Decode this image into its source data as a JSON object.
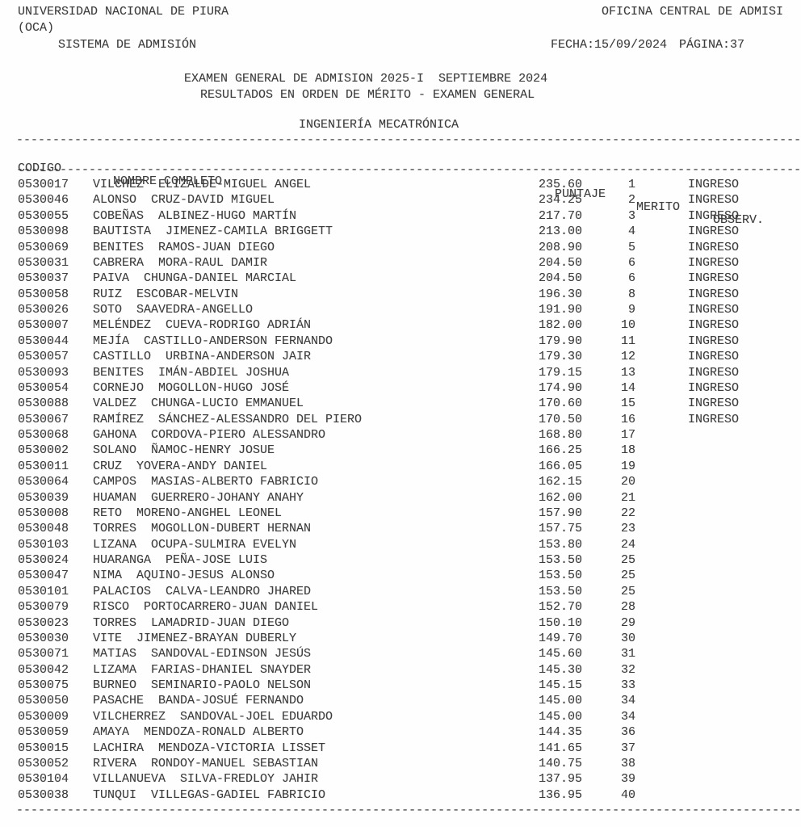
{
  "report": {
    "header": {
      "university": "UNIVERSIDAD NACIONAL DE PIURA",
      "university_acronym": "(OCA)",
      "office": "OFICINA CENTRAL DE ADMISI",
      "system": "SISTEMA DE ADMISIÓN",
      "date": "FECHA:15/09/2024",
      "page": "PÁGINA:37"
    },
    "title_line1": "EXAMEN GENERAL DE ADMISION 2025-I  SEPTIEMBRE 2024",
    "title_line2": "RESULTADOS EN ORDEN DE MÉRITO - EXAMEN GENERAL",
    "program": "INGENIERÍA MECATRÓNICA",
    "separator": {
      "char": "-",
      "count": 130
    },
    "columns": {
      "codigo": "CODIGO",
      "nombre": "NOMBRE COMPLETO",
      "puntaje": "PUNTAJE",
      "merito": "MERITO",
      "observ": "OBSERV."
    },
    "rows": [
      {
        "codigo": "0530017",
        "nombre": "VILCHEZ  ELIZALDE-MIGUEL ANGEL",
        "puntaje": "235.60",
        "merito": "1",
        "observ": "INGRESO"
      },
      {
        "codigo": "0530046",
        "nombre": "ALONSO  CRUZ-DAVID MIGUEL",
        "puntaje": "234.25",
        "merito": "2",
        "observ": "INGRESO"
      },
      {
        "codigo": "0530055",
        "nombre": "COBEÑAS  ALBINEZ-HUGO MARTÍN",
        "puntaje": "217.70",
        "merito": "3",
        "observ": "INGRESO"
      },
      {
        "codigo": "0530098",
        "nombre": "BAUTISTA  JIMENEZ-CAMILA BRIGGETT",
        "puntaje": "213.00",
        "merito": "4",
        "observ": "INGRESO"
      },
      {
        "codigo": "0530069",
        "nombre": "BENITES  RAMOS-JUAN DIEGO",
        "puntaje": "208.90",
        "merito": "5",
        "observ": "INGRESO"
      },
      {
        "codigo": "0530031",
        "nombre": "CABRERA  MORA-RAUL DAMIR",
        "puntaje": "204.50",
        "merito": "6",
        "observ": "INGRESO"
      },
      {
        "codigo": "0530037",
        "nombre": "PAIVA  CHUNGA-DANIEL MARCIAL",
        "puntaje": "204.50",
        "merito": "6",
        "observ": "INGRESO"
      },
      {
        "codigo": "0530058",
        "nombre": "RUIZ  ESCOBAR-MELVIN",
        "puntaje": "196.30",
        "merito": "8",
        "observ": "INGRESO"
      },
      {
        "codigo": "0530026",
        "nombre": "SOTO  SAAVEDRA-ANGELLO",
        "puntaje": "191.90",
        "merito": "9",
        "observ": "INGRESO"
      },
      {
        "codigo": "0530007",
        "nombre": "MELÉNDEZ  CUEVA-RODRIGO ADRIÁN",
        "puntaje": "182.00",
        "merito": "10",
        "observ": "INGRESO"
      },
      {
        "codigo": "0530044",
        "nombre": "MEJÍA  CASTILLO-ANDERSON FERNANDO",
        "puntaje": "179.90",
        "merito": "11",
        "observ": "INGRESO"
      },
      {
        "codigo": "0530057",
        "nombre": "CASTILLO  URBINA-ANDERSON JAIR",
        "puntaje": "179.30",
        "merito": "12",
        "observ": "INGRESO"
      },
      {
        "codigo": "0530093",
        "nombre": "BENITES  IMÁN-ABDIEL JOSHUA",
        "puntaje": "179.15",
        "merito": "13",
        "observ": "INGRESO"
      },
      {
        "codigo": "0530054",
        "nombre": "CORNEJO  MOGOLLON-HUGO JOSÉ",
        "puntaje": "174.90",
        "merito": "14",
        "observ": "INGRESO"
      },
      {
        "codigo": "0530088",
        "nombre": "VALDEZ  CHUNGA-LUCIO EMMANUEL",
        "puntaje": "170.60",
        "merito": "15",
        "observ": "INGRESO"
      },
      {
        "codigo": "0530067",
        "nombre": "RAMÍREZ  SÁNCHEZ-ALESSANDRO DEL PIERO",
        "puntaje": "170.50",
        "merito": "16",
        "observ": "INGRESO"
      },
      {
        "codigo": "0530068",
        "nombre": "GAHONA  CORDOVA-PIERO ALESSANDRO",
        "puntaje": "168.80",
        "merito": "17",
        "observ": ""
      },
      {
        "codigo": "0530002",
        "nombre": "SOLANO  ÑAMOC-HENRY JOSUE",
        "puntaje": "166.25",
        "merito": "18",
        "observ": ""
      },
      {
        "codigo": "0530011",
        "nombre": "CRUZ  YOVERA-ANDY DANIEL",
        "puntaje": "166.05",
        "merito": "19",
        "observ": ""
      },
      {
        "codigo": "0530064",
        "nombre": "CAMPOS  MASIAS-ALBERTO FABRICIO",
        "puntaje": "162.15",
        "merito": "20",
        "observ": ""
      },
      {
        "codigo": "0530039",
        "nombre": "HUAMAN  GUERRERO-JOHANY ANAHY",
        "puntaje": "162.00",
        "merito": "21",
        "observ": ""
      },
      {
        "codigo": "0530008",
        "nombre": "RETO  MORENO-ANGHEL LEONEL",
        "puntaje": "157.90",
        "merito": "22",
        "observ": ""
      },
      {
        "codigo": "0530048",
        "nombre": "TORRES  MOGOLLON-DUBERT HERNAN",
        "puntaje": "157.75",
        "merito": "23",
        "observ": ""
      },
      {
        "codigo": "0530103",
        "nombre": "LIZANA  OCUPA-SULMIRA EVELYN",
        "puntaje": "153.80",
        "merito": "24",
        "observ": ""
      },
      {
        "codigo": "0530024",
        "nombre": "HUARANGA  PEÑA-JOSE LUIS",
        "puntaje": "153.50",
        "merito": "25",
        "observ": ""
      },
      {
        "codigo": "0530047",
        "nombre": "NIMA  AQUINO-JESUS ALONSO",
        "puntaje": "153.50",
        "merito": "25",
        "observ": ""
      },
      {
        "codigo": "0530101",
        "nombre": "PALACIOS  CALVA-LEANDRO JHARED",
        "puntaje": "153.50",
        "merito": "25",
        "observ": ""
      },
      {
        "codigo": "0530079",
        "nombre": "RISCO  PORTOCARRERO-JUAN DANIEL",
        "puntaje": "152.70",
        "merito": "28",
        "observ": ""
      },
      {
        "codigo": "0530023",
        "nombre": "TORRES  LAMADRID-JUAN DIEGO",
        "puntaje": "150.10",
        "merito": "29",
        "observ": ""
      },
      {
        "codigo": "0530030",
        "nombre": "VITE  JIMENEZ-BRAYAN DUBERLY",
        "puntaje": "149.70",
        "merito": "30",
        "observ": ""
      },
      {
        "codigo": "0530071",
        "nombre": "MATIAS  SANDOVAL-EDINSON JESÚS",
        "puntaje": "145.60",
        "merito": "31",
        "observ": ""
      },
      {
        "codigo": "0530042",
        "nombre": "LIZAMA  FARIAS-DHANIEL SNAYDER",
        "puntaje": "145.30",
        "merito": "32",
        "observ": ""
      },
      {
        "codigo": "0530075",
        "nombre": "BURNEO  SEMINARIO-PAOLO NELSON",
        "puntaje": "145.15",
        "merito": "33",
        "observ": ""
      },
      {
        "codigo": "0530050",
        "nombre": "PASACHE  BANDA-JOSUÉ FERNANDO",
        "puntaje": "145.00",
        "merito": "34",
        "observ": ""
      },
      {
        "codigo": "0530009",
        "nombre": "VILCHERREZ  SANDOVAL-JOEL EDUARDO",
        "puntaje": "145.00",
        "merito": "34",
        "observ": ""
      },
      {
        "codigo": "0530059",
        "nombre": "AMAYA  MENDOZA-RONALD ALBERTO",
        "puntaje": "144.35",
        "merito": "36",
        "observ": ""
      },
      {
        "codigo": "0530015",
        "nombre": "LACHIRA  MENDOZA-VICTORIA LISSET",
        "puntaje": "141.65",
        "merito": "37",
        "observ": ""
      },
      {
        "codigo": "0530052",
        "nombre": "RIVERA  RONDOY-MANUEL SEBASTIAN",
        "puntaje": "140.75",
        "merito": "38",
        "observ": ""
      },
      {
        "codigo": "0530104",
        "nombre": "VILLANUEVA  SILVA-FREDLOY JAHIR",
        "puntaje": "137.95",
        "merito": "39",
        "observ": ""
      },
      {
        "codigo": "0530038",
        "nombre": "TUNQUI  VILLEGAS-GADIEL FABRICIO",
        "puntaje": "136.95",
        "merito": "40",
        "observ": ""
      }
    ]
  }
}
